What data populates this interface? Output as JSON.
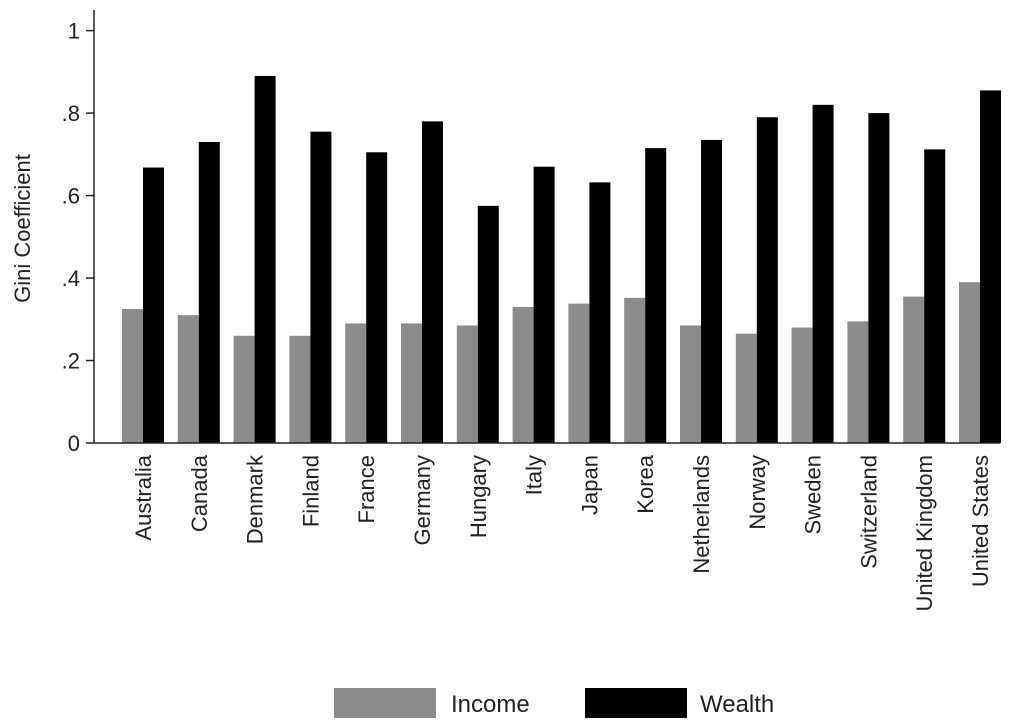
{
  "chart_data": {
    "type": "bar",
    "title": "",
    "xlabel": "",
    "ylabel": "Gini Coefficient",
    "ylim": [
      0,
      1.05
    ],
    "yticks": [
      0,
      0.2,
      0.4,
      0.6,
      0.8,
      1
    ],
    "ytick_labels": [
      "0",
      ".2",
      ".4",
      ".6",
      ".8",
      "1"
    ],
    "grid": false,
    "legend_position": "bottom",
    "categories": [
      "Australia",
      "Canada",
      "Denmark",
      "Finland",
      "France",
      "Germany",
      "Hungary",
      "Italy",
      "Japan",
      "Korea",
      "Netherlands",
      "Norway",
      "Sweden",
      "Switzerland",
      "United Kingdom",
      "United States"
    ],
    "series": [
      {
        "name": "Income",
        "color": "#8c8c8c",
        "values": [
          0.325,
          0.31,
          0.26,
          0.26,
          0.29,
          0.29,
          0.285,
          0.33,
          0.338,
          0.352,
          0.285,
          0.265,
          0.28,
          0.295,
          0.355,
          0.39
        ]
      },
      {
        "name": "Wealth",
        "color": "#000000",
        "values": [
          0.668,
          0.73,
          0.89,
          0.755,
          0.705,
          0.78,
          0.575,
          0.67,
          0.632,
          0.715,
          0.735,
          0.79,
          0.82,
          0.8,
          0.712,
          0.855
        ]
      }
    ]
  }
}
